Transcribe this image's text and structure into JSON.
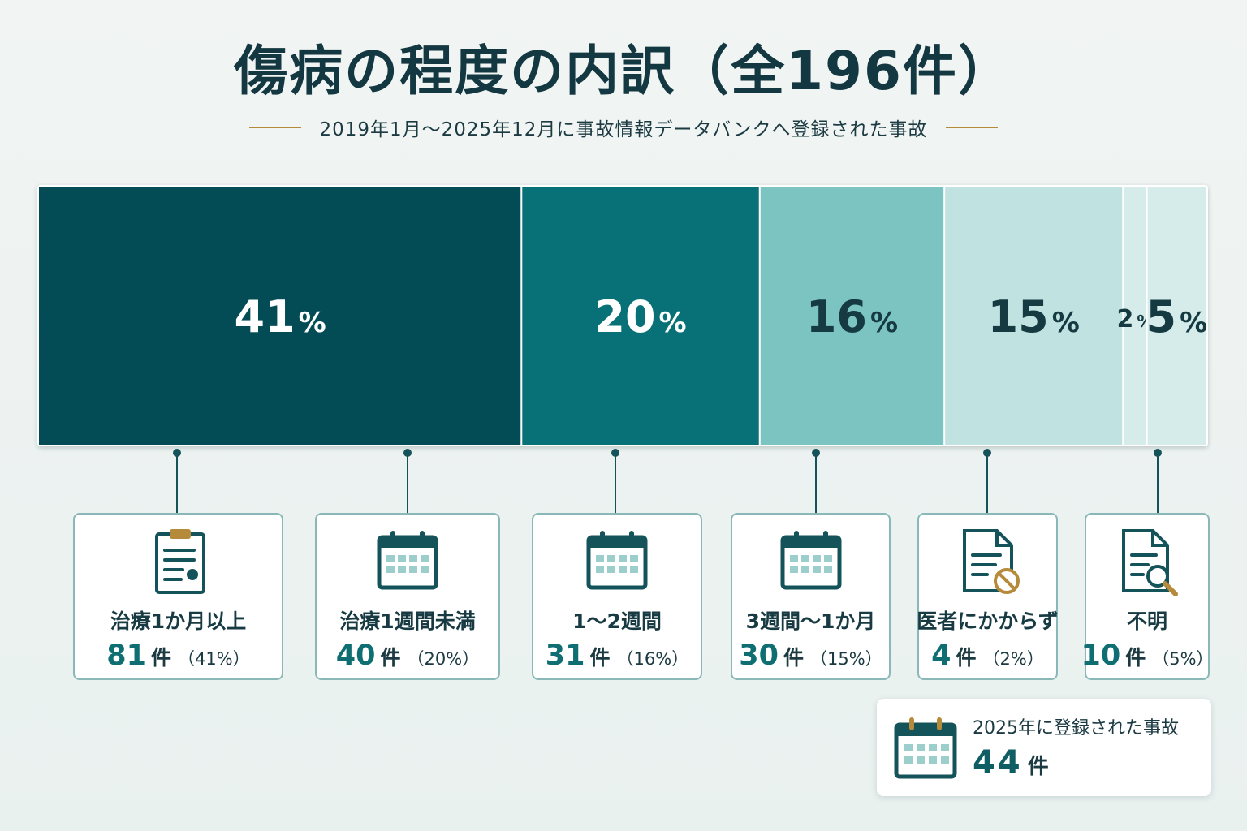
{
  "header": {
    "title": "傷病の程度の内訳（全196件）",
    "subtitle": "2019年1月～2025年12月に事故情報データバンクへ登録された事故"
  },
  "chart_data": {
    "type": "bar",
    "orientation": "horizontal-stacked-100",
    "total": 196,
    "unit_label": "件",
    "categories": [
      "治療1か月以上",
      "治療1週間未満",
      "1～2週間",
      "3週間～1か月",
      "医者にかからず",
      "不明"
    ],
    "values": [
      81,
      40,
      31,
      30,
      4,
      10
    ],
    "percent_labels": [
      "41",
      "20",
      "16",
      "15",
      "2",
      "5"
    ],
    "pct_text": [
      "（41%）",
      "（20%）",
      "（16%）",
      "（15%）",
      "（2%）",
      "（5%）"
    ],
    "colors": [
      "#034b55",
      "#087178",
      "#7cc4c1",
      "#c0e3e1",
      "#d6ecea",
      "#d6ecea"
    ],
    "label_colors": [
      "#ffffff",
      "#ffffff",
      "#163a42",
      "#163a42",
      "#163a42",
      "#163a42"
    ],
    "icons": [
      "clipboard-icon",
      "calendar-icon",
      "calendar-icon",
      "calendar-icon",
      "document-prohibited-icon",
      "document-search-icon"
    ]
  },
  "note": {
    "label": "2025年に登録された事故",
    "count": "44",
    "unit": "件",
    "icon": "calendar-icon"
  }
}
